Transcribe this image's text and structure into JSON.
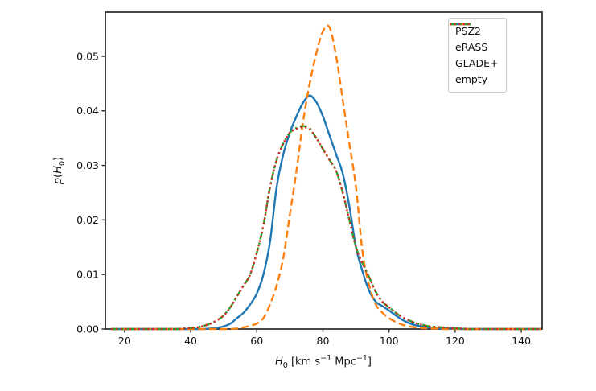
{
  "chart_data": {
    "type": "line",
    "title": "",
    "xlabel": "H0 [km s-1 Mpc-1]",
    "ylabel": "p(H0)",
    "xlabel_parts": {
      "var": "H",
      "sub": "0",
      "mid": " [km s",
      "sup1": "−1",
      "mid2": " Mpc",
      "sup2": "−1",
      "post": "]"
    },
    "ylabel_parts": {
      "p": "p",
      "open": "(",
      "var": "H",
      "sub": "0",
      "close": ")"
    },
    "xlim": [
      14.2,
      146.3
    ],
    "ylim": [
      0,
      0.0581
    ],
    "xticks": [
      20,
      40,
      60,
      80,
      100,
      120,
      140
    ],
    "xtick_labels": [
      "20",
      "40",
      "60",
      "80",
      "100",
      "120",
      "140"
    ],
    "yticks": [
      0,
      0.01,
      0.02,
      0.03,
      0.04,
      0.05
    ],
    "ytick_labels": [
      "0.00",
      "0.01",
      "0.02",
      "0.03",
      "0.04",
      "0.05"
    ],
    "grid": false,
    "legend_position": "upper right",
    "spine_color": "#262626",
    "x": [
      16,
      18,
      20,
      22,
      24,
      26,
      28,
      30,
      32,
      34,
      36,
      38,
      40,
      42,
      44,
      46,
      48,
      50,
      52,
      54,
      56,
      58,
      60,
      62,
      64,
      66,
      68,
      70,
      72,
      74,
      76,
      78,
      80,
      82,
      84,
      86,
      88,
      90,
      92,
      94,
      96,
      98,
      100,
      102,
      104,
      106,
      108,
      110,
      112,
      114,
      116,
      118,
      120,
      122,
      124,
      126,
      128,
      130,
      132,
      134,
      136,
      138,
      140,
      142,
      144,
      146
    ],
    "series": [
      {
        "name": "PSZ2",
        "color": "#1f77b4",
        "style": "solid",
        "values": [
          0,
          0,
          0,
          0,
          0,
          0,
          0,
          0,
          0,
          0,
          0,
          0,
          0,
          0,
          0,
          0.0001,
          0.0002,
          0.0005,
          0.001,
          0.002,
          0.003,
          0.0045,
          0.0065,
          0.01,
          0.016,
          0.026,
          0.032,
          0.036,
          0.039,
          0.0415,
          0.0428,
          0.0416,
          0.039,
          0.0355,
          0.032,
          0.0285,
          0.0225,
          0.015,
          0.0105,
          0.007,
          0.005,
          0.0042,
          0.0034,
          0.0025,
          0.0017,
          0.0011,
          0.0007,
          0.0005,
          0.0003,
          0.0002,
          0.0001,
          0.0001,
          0.0001,
          0,
          0,
          0,
          0,
          0,
          0,
          0,
          0,
          0,
          0,
          0,
          0,
          0
        ]
      },
      {
        "name": "eRASS",
        "color": "#ff7f0e",
        "style": "dashed",
        "values": [
          0,
          0,
          0,
          0,
          0,
          0,
          0,
          0,
          0,
          0,
          0,
          0,
          0,
          0,
          0,
          0,
          0,
          0,
          0,
          0.0001,
          0.0003,
          0.0006,
          0.001,
          0.002,
          0.0045,
          0.008,
          0.013,
          0.021,
          0.029,
          0.038,
          0.045,
          0.0505,
          0.0546,
          0.0553,
          0.05,
          0.042,
          0.034,
          0.026,
          0.014,
          0.008,
          0.0045,
          0.003,
          0.002,
          0.0013,
          0.0008,
          0.0005,
          0.0003,
          0.0002,
          0.0001,
          0.0001,
          0,
          0,
          0,
          0,
          0,
          0,
          0,
          0,
          0,
          0,
          0,
          0,
          0,
          0,
          0,
          0
        ]
      },
      {
        "name": "GLADE+",
        "color": "#2ca02c",
        "style": "dashdot",
        "values": [
          0,
          0,
          0,
          0,
          0,
          0,
          0,
          0,
          0,
          0,
          0,
          0.0001,
          0.0002,
          0.0003,
          0.0006,
          0.001,
          0.0016,
          0.0025,
          0.004,
          0.006,
          0.008,
          0.01,
          0.014,
          0.019,
          0.026,
          0.031,
          0.034,
          0.036,
          0.0369,
          0.0372,
          0.0368,
          0.035,
          0.033,
          0.031,
          0.029,
          0.025,
          0.02,
          0.015,
          0.012,
          0.0095,
          0.0068,
          0.005,
          0.004,
          0.003,
          0.0022,
          0.0016,
          0.0011,
          0.0008,
          0.0005,
          0.0004,
          0.0003,
          0.0002,
          0.0001,
          0.0001,
          0,
          0,
          0,
          0,
          0,
          0,
          0,
          0,
          0,
          0,
          0,
          0
        ]
      },
      {
        "name": "empty",
        "color": "#d62728",
        "style": "dotted",
        "values": [
          0,
          0,
          0,
          0,
          0,
          0,
          0,
          0,
          0,
          0,
          0,
          0.0001,
          0.0002,
          0.0003,
          0.0006,
          0.001,
          0.0016,
          0.0025,
          0.004,
          0.006,
          0.008,
          0.01,
          0.014,
          0.019,
          0.026,
          0.031,
          0.034,
          0.036,
          0.0367,
          0.037,
          0.0366,
          0.035,
          0.033,
          0.031,
          0.029,
          0.025,
          0.02,
          0.015,
          0.012,
          0.0095,
          0.0068,
          0.005,
          0.004,
          0.003,
          0.0022,
          0.0016,
          0.0011,
          0.0008,
          0.0005,
          0.0004,
          0.0003,
          0.0002,
          0.0001,
          0.0001,
          0,
          0,
          0,
          0,
          0,
          0,
          0,
          0,
          0,
          0,
          0,
          0
        ]
      }
    ]
  }
}
